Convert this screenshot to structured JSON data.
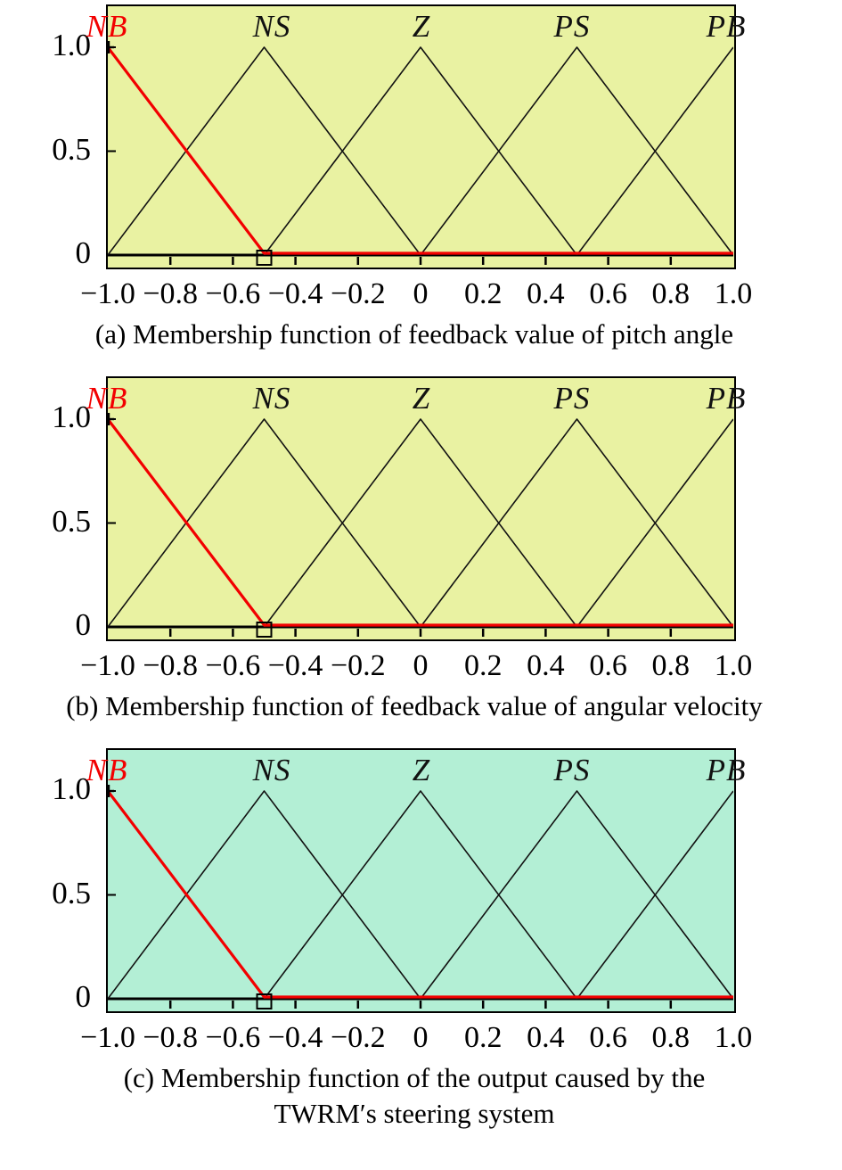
{
  "colors": {
    "plot_background_ab": "#e9f2a2",
    "plot_background_c": "#b3efd5",
    "highlight_red": "#f20000",
    "curve_black": "#121212",
    "axis_black": "#000000"
  },
  "figures": [
    {
      "id": "a",
      "caption": "(a) Membership function of feedback value of pitch angle",
      "caption_line2": "",
      "bg": "#e9f2a2",
      "mf_labels": [
        "NB",
        "NS",
        "Z",
        "PS",
        "PB"
      ],
      "highlighted_mf": "NB",
      "y_labels": [
        "1.0",
        "0.5",
        "0"
      ],
      "x_labels": [
        "−1.0",
        "−0.8",
        "−0.6",
        "−0.4",
        "−0.2",
        "0",
        "0.2",
        "0.4",
        "0.6",
        "0.8",
        "1.0"
      ]
    },
    {
      "id": "b",
      "caption": "(b) Membership function of feedback value of angular velocity",
      "caption_line2": "",
      "bg": "#e9f2a2",
      "mf_labels": [
        "NB",
        "NS",
        "Z",
        "PS",
        "PB"
      ],
      "highlighted_mf": "NB",
      "y_labels": [
        "1.0",
        "0.5",
        "0"
      ],
      "x_labels": [
        "−1.0",
        "−0.8",
        "−0.6",
        "−0.4",
        "−0.2",
        "0",
        "0.2",
        "0.4",
        "0.6",
        "0.8",
        "1.0"
      ]
    },
    {
      "id": "c",
      "caption": "(c) Membership function of the output caused by the",
      "caption_line2": "TWRM′s steering system",
      "bg": "#b3efd5",
      "mf_labels": [
        "NB",
        "NS",
        "Z",
        "PS",
        "PB"
      ],
      "highlighted_mf": "NB",
      "y_labels": [
        "1.0",
        "0.5",
        "0"
      ],
      "x_labels": [
        "−1.0",
        "−0.8",
        "−0.6",
        "−0.4",
        "−0.2",
        "0",
        "0.2",
        "0.4",
        "0.6",
        "0.8",
        "1.0"
      ]
    }
  ],
  "chart_data": [
    {
      "type": "line",
      "title": "(a) Membership function of feedback value of pitch angle",
      "xlabel": "",
      "ylabel": "",
      "xlim": [
        -1,
        1
      ],
      "ylim": [
        0,
        1
      ],
      "x_ticks": [
        -1,
        -0.8,
        -0.6,
        -0.4,
        -0.2,
        0,
        0.2,
        0.4,
        0.6,
        0.8,
        1
      ],
      "y_ticks": [
        0,
        0.5,
        1
      ],
      "grid": false,
      "legend_position": "above-curves",
      "series": [
        {
          "name": "NB",
          "color": "#f20000",
          "width": 3.2,
          "points": [
            [
              -1,
              1
            ],
            [
              -0.5,
              0
            ],
            [
              1,
              0
            ]
          ]
        },
        {
          "name": "NS",
          "color": "#121212",
          "width": 1.6,
          "points": [
            [
              -1,
              0
            ],
            [
              -0.5,
              1
            ],
            [
              0,
              0
            ]
          ]
        },
        {
          "name": "Z",
          "color": "#121212",
          "width": 1.6,
          "points": [
            [
              -0.5,
              0
            ],
            [
              0,
              1
            ],
            [
              0.5,
              0
            ]
          ]
        },
        {
          "name": "PS",
          "color": "#121212",
          "width": 1.6,
          "points": [
            [
              0,
              0
            ],
            [
              0.5,
              1
            ],
            [
              1,
              0
            ]
          ]
        },
        {
          "name": "PB",
          "color": "#121212",
          "width": 1.6,
          "points": [
            [
              0.5,
              0
            ],
            [
              1,
              1
            ]
          ]
        }
      ],
      "markers": [
        {
          "shape": "plus",
          "x": -1,
          "y": 1
        },
        {
          "shape": "square",
          "x": -0.5,
          "y": 0
        }
      ]
    },
    {
      "type": "line",
      "title": "(b) Membership function of feedback value of angular velocity",
      "xlabel": "",
      "ylabel": "",
      "xlim": [
        -1,
        1
      ],
      "ylim": [
        0,
        1
      ],
      "x_ticks": [
        -1,
        -0.8,
        -0.6,
        -0.4,
        -0.2,
        0,
        0.2,
        0.4,
        0.6,
        0.8,
        1
      ],
      "y_ticks": [
        0,
        0.5,
        1
      ],
      "grid": false,
      "legend_position": "above-curves",
      "series": [
        {
          "name": "NB",
          "color": "#f20000",
          "width": 3.2,
          "points": [
            [
              -1,
              1
            ],
            [
              -0.5,
              0
            ],
            [
              1,
              0
            ]
          ]
        },
        {
          "name": "NS",
          "color": "#121212",
          "width": 1.6,
          "points": [
            [
              -1,
              0
            ],
            [
              -0.5,
              1
            ],
            [
              0,
              0
            ]
          ]
        },
        {
          "name": "Z",
          "color": "#121212",
          "width": 1.6,
          "points": [
            [
              -0.5,
              0
            ],
            [
              0,
              1
            ],
            [
              0.5,
              0
            ]
          ]
        },
        {
          "name": "PS",
          "color": "#121212",
          "width": 1.6,
          "points": [
            [
              0,
              0
            ],
            [
              0.5,
              1
            ],
            [
              1,
              0
            ]
          ]
        },
        {
          "name": "PB",
          "color": "#121212",
          "width": 1.6,
          "points": [
            [
              0.5,
              0
            ],
            [
              1,
              1
            ]
          ]
        }
      ],
      "markers": [
        {
          "shape": "plus",
          "x": -1,
          "y": 1
        },
        {
          "shape": "square",
          "x": -0.5,
          "y": 0
        }
      ]
    },
    {
      "type": "line",
      "title": "(c) Membership function of the output caused by the TWRM′s steering system",
      "xlabel": "",
      "ylabel": "",
      "xlim": [
        -1,
        1
      ],
      "ylim": [
        0,
        1
      ],
      "x_ticks": [
        -1,
        -0.8,
        -0.6,
        -0.4,
        -0.2,
        0,
        0.2,
        0.4,
        0.6,
        0.8,
        1
      ],
      "y_ticks": [
        0,
        0.5,
        1
      ],
      "grid": false,
      "legend_position": "above-curves",
      "series": [
        {
          "name": "NB",
          "color": "#f20000",
          "width": 3.2,
          "points": [
            [
              -1,
              1
            ],
            [
              -0.5,
              0
            ],
            [
              1,
              0
            ]
          ]
        },
        {
          "name": "NS",
          "color": "#121212",
          "width": 1.6,
          "points": [
            [
              -1,
              0
            ],
            [
              -0.5,
              1
            ],
            [
              0,
              0
            ]
          ]
        },
        {
          "name": "Z",
          "color": "#121212",
          "width": 1.6,
          "points": [
            [
              -0.5,
              0
            ],
            [
              0,
              1
            ],
            [
              0.5,
              0
            ]
          ]
        },
        {
          "name": "PS",
          "color": "#121212",
          "width": 1.6,
          "points": [
            [
              0,
              0
            ],
            [
              0.5,
              1
            ],
            [
              1,
              0
            ]
          ]
        },
        {
          "name": "PB",
          "color": "#121212",
          "width": 1.6,
          "points": [
            [
              0.5,
              0
            ],
            [
              1,
              1
            ]
          ]
        }
      ],
      "markers": [
        {
          "shape": "plus",
          "x": -1,
          "y": 1
        },
        {
          "shape": "square",
          "x": -0.5,
          "y": 0
        }
      ]
    }
  ]
}
